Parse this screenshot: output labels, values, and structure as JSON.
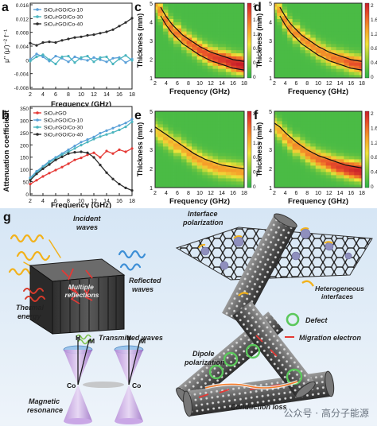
{
  "panels": {
    "a": {
      "letter": "a",
      "ylabel": "μ'' (μ')⁻² f⁻¹",
      "xlabel": "Frequency (GHz)",
      "yticks": [
        "0.016",
        "0.012",
        "0.008",
        "0.004",
        "0",
        "-0.004",
        "-0.008"
      ],
      "xticks": [
        "2",
        "4",
        "6",
        "8",
        "10",
        "12",
        "14",
        "16",
        "18"
      ],
      "legend": [
        "SiO₂/rGO/Co-10",
        "SiO₂/rGO/Co-30",
        "SiO₂/rGO/Co-40"
      ]
    },
    "b": {
      "letter": "b",
      "ylabel": "Attenuation coefficient",
      "xlabel": "Frequency (GHz)",
      "yticks": [
        "350",
        "300",
        "250",
        "200",
        "150",
        "100",
        "50",
        "0"
      ],
      "xticks": [
        "2",
        "4",
        "6",
        "8",
        "10",
        "12",
        "14",
        "16",
        "18"
      ],
      "legend": [
        "SiO₂/rGO",
        "SiO₂/rGO/Co-10",
        "SiO₂/rGO/Co-30",
        "SiO₂/rGO/Co-40"
      ]
    },
    "heatmaps": {
      "ylabel": "Thickness (mm)",
      "xlabel": "Frequency (GHz)",
      "yticks": [
        "5",
        "4",
        "3",
        "2",
        "1"
      ],
      "xticks": [
        "2",
        "4",
        "6",
        "8",
        "10",
        "12",
        "14",
        "16",
        "18"
      ],
      "colorbar": [
        "2",
        "1.6",
        "1.2",
        "0.8",
        "0.4",
        "0"
      ],
      "letters": [
        "c",
        "d",
        "e",
        "f"
      ]
    },
    "g": {
      "letter": "g",
      "labels": {
        "incident": "Incident\nwaves",
        "reflected": "Reflected\nwaves",
        "multiple": "Multiple\nreflections",
        "thermal": "Thermal\nenergy",
        "transmitted": "Transmitted waves",
        "interface_pol": "Interface\npolarization",
        "hetero": "Heterogeneous\ninterfaces",
        "defect": "Defect",
        "migration": "Migration electron",
        "dipole": "Dipole\npolarization",
        "magnetic": "Magnetic\nresonance",
        "conduction": "Conduction loss",
        "H1": "H",
        "M1": "M",
        "Co1": "Co",
        "H2": "H",
        "M2": "M",
        "Co2": "Co"
      }
    }
  },
  "watermark": "公众号 · 高分子能源",
  "chart_data": [
    {
      "type": "line",
      "panel": "a",
      "xlabel": "Frequency (GHz)",
      "ylabel": "μ'' (μ')⁻² f⁻¹",
      "xlim": [
        2,
        18
      ],
      "ylim": [
        -0.008,
        0.016
      ],
      "x": [
        2,
        3,
        4,
        5,
        6,
        7,
        8,
        9,
        10,
        11,
        12,
        13,
        14,
        15,
        16,
        17,
        18
      ],
      "series": [
        {
          "name": "SiO₂/rGO/Co-10",
          "color": "#5aa0d8",
          "values": [
            0.0003,
            0.0018,
            0.001,
            -0.0002,
            0.0012,
            0.0006,
            -0.0004,
            0.001,
            0.0004,
            0.0,
            0.0008,
            0.0002,
            -0.0004,
            0.0006,
            0.0008,
            -0.0006,
            0.0004
          ]
        },
        {
          "name": "SiO₂/rGO/Co-30",
          "color": "#4bb5bf",
          "values": [
            -0.0002,
            0.001,
            0.0016,
            0.0002,
            -0.001,
            0.001,
            0.0012,
            -0.0006,
            0.0008,
            0.0012,
            -0.0004,
            0.0008,
            0.001,
            -0.001,
            0.0004,
            0.0014,
            0.0
          ]
        },
        {
          "name": "SiO₂/rGO/Co-40",
          "color": "#2d2d2d",
          "values": [
            0.0048,
            0.0042,
            0.005,
            0.0052,
            0.005,
            0.0056,
            0.006,
            0.0064,
            0.0066,
            0.007,
            0.0072,
            0.0076,
            0.008,
            0.0086,
            0.0096,
            0.0106,
            0.0118
          ]
        }
      ]
    },
    {
      "type": "line",
      "panel": "b",
      "xlabel": "Frequency (GHz)",
      "ylabel": "Attenuation coefficient",
      "xlim": [
        2,
        18
      ],
      "ylim": [
        0,
        350
      ],
      "x": [
        2,
        3,
        4,
        5,
        6,
        7,
        8,
        9,
        10,
        11,
        12,
        13,
        14,
        15,
        16,
        17,
        18
      ],
      "series": [
        {
          "name": "SiO₂/rGO",
          "color": "#e53935",
          "values": [
            45,
            60,
            75,
            88,
            100,
            112,
            125,
            140,
            148,
            160,
            168,
            150,
            175,
            165,
            180,
            172,
            185
          ]
        },
        {
          "name": "SiO₂/rGO/Co-10",
          "color": "#5aa0d8",
          "values": [
            70,
            95,
            115,
            135,
            150,
            165,
            180,
            195,
            210,
            220,
            230,
            245,
            255,
            265,
            275,
            285,
            300
          ]
        },
        {
          "name": "SiO₂/rGO/Co-30",
          "color": "#4bb5bf",
          "values": [
            65,
            90,
            110,
            130,
            145,
            160,
            172,
            185,
            198,
            210,
            222,
            232,
            240,
            248,
            258,
            270,
            290
          ]
        },
        {
          "name": "SiO₂/rGO/Co-40",
          "color": "#2d2d2d",
          "values": [
            60,
            85,
            105,
            122,
            140,
            152,
            165,
            170,
            172,
            168,
            150,
            120,
            90,
            65,
            45,
            30,
            20
          ]
        }
      ]
    },
    {
      "type": "heatmap",
      "panel": "c",
      "xlabel": "Frequency (GHz)",
      "ylabel": "Thickness (mm)",
      "xlim": [
        2,
        18
      ],
      "ylim": [
        1,
        5
      ],
      "ridge_thickness": [
        5.0,
        4.6,
        4.1,
        3.7,
        3.4,
        3.1,
        2.9,
        2.7,
        2.5,
        2.35,
        2.2,
        2.1,
        2.0,
        1.9,
        1.8,
        1.75,
        1.7
      ],
      "peak_intensity": [
        0.9,
        1.0,
        1.1,
        1.1,
        1.1,
        1.1,
        1.2,
        1.2,
        1.3,
        1.3,
        1.4,
        1.5,
        1.6,
        1.7,
        1.8,
        1.9,
        1.9
      ],
      "contour": true
    },
    {
      "type": "heatmap",
      "panel": "d",
      "xlabel": "Frequency (GHz)",
      "ylabel": "Thickness (mm)",
      "xlim": [
        2,
        18
      ],
      "ylim": [
        1,
        5
      ],
      "ridge_thickness": [
        5.0,
        4.6,
        4.1,
        3.7,
        3.4,
        3.1,
        2.9,
        2.7,
        2.5,
        2.35,
        2.2,
        2.1,
        2.0,
        1.9,
        1.8,
        1.75,
        1.7
      ],
      "peak_intensity": [
        0.8,
        0.9,
        1.0,
        1.0,
        1.0,
        1.0,
        1.0,
        1.0,
        1.0,
        1.0,
        1.0,
        1.1,
        1.1,
        1.2,
        1.3,
        1.3,
        1.4
      ],
      "contour": true
    },
    {
      "type": "heatmap",
      "panel": "e",
      "xlabel": "Frequency (GHz)",
      "ylabel": "Thickness (mm)",
      "xlim": [
        2,
        18
      ],
      "ylim": [
        1,
        5
      ],
      "ridge_thickness": [
        4.0,
        3.8,
        3.6,
        3.4,
        3.2,
        3.0,
        2.8,
        2.6,
        2.45,
        2.3,
        2.2,
        2.1,
        2.0,
        1.95,
        1.9,
        1.85,
        1.8
      ],
      "peak_intensity": [
        0.7,
        0.75,
        0.8,
        0.8,
        0.85,
        0.85,
        0.9,
        0.9,
        0.9,
        0.9,
        0.9,
        0.9,
        0.9,
        0.9,
        0.9,
        0.9,
        0.9
      ],
      "contour": true
    },
    {
      "type": "heatmap",
      "panel": "f",
      "xlabel": "Frequency (GHz)",
      "ylabel": "Thickness (mm)",
      "xlim": [
        2,
        18
      ],
      "ylim": [
        1,
        5
      ],
      "ridge_thickness": [
        4.2,
        4.0,
        3.7,
        3.45,
        3.2,
        3.0,
        2.8,
        2.65,
        2.5,
        2.4,
        2.3,
        2.2,
        2.1,
        2.0,
        1.95,
        1.9,
        1.85
      ],
      "peak_intensity": [
        0.8,
        0.85,
        0.9,
        0.95,
        1.0,
        1.0,
        1.05,
        1.1,
        1.15,
        1.2,
        1.3,
        1.4,
        1.5,
        1.6,
        1.7,
        1.8,
        1.8
      ],
      "contour": true
    }
  ]
}
